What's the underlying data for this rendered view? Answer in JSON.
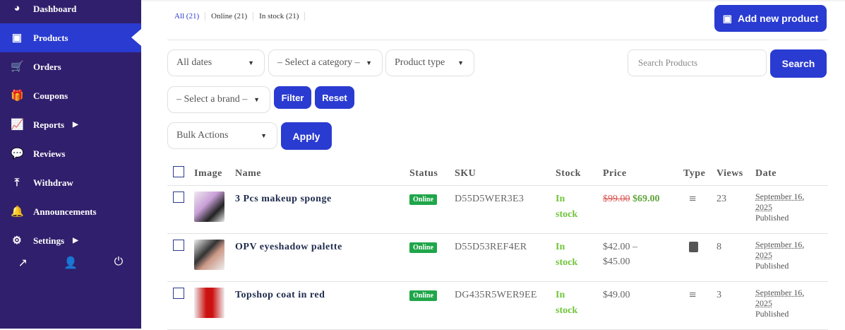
{
  "sidebar": {
    "items": [
      {
        "label": "Dashboard",
        "icon": "dashboard-icon",
        "glyph": "◕"
      },
      {
        "label": "Products",
        "icon": "briefcase-icon",
        "glyph": "▣",
        "active": true
      },
      {
        "label": "Orders",
        "icon": "cart-icon",
        "glyph": "🛒"
      },
      {
        "label": "Coupons",
        "icon": "gift-icon",
        "glyph": "🎁"
      },
      {
        "label": "Reports",
        "icon": "chart-line-icon",
        "glyph": "📈",
        "submenu": true
      },
      {
        "label": "Reviews",
        "icon": "comments-icon",
        "glyph": "💬"
      },
      {
        "label": "Withdraw",
        "icon": "upload-icon",
        "glyph": "⤒"
      },
      {
        "label": "Announcements",
        "icon": "bell-icon",
        "glyph": "🔔"
      },
      {
        "label": "Settings",
        "icon": "gear-icon",
        "glyph": "⚙",
        "submenu": true
      }
    ],
    "footer": [
      {
        "icon": "external-link-icon",
        "glyph": "↗"
      },
      {
        "icon": "user-icon",
        "glyph": "👤"
      },
      {
        "icon": "power-icon",
        "glyph": "⏻"
      }
    ]
  },
  "tabs": [
    "All (21)",
    "Online (21)",
    "In stock (21)"
  ],
  "add_button": "Add new product",
  "filters": {
    "dates": "All dates",
    "category": "– Select a category –",
    "type": "Product type",
    "brand": "– Select a brand –",
    "filter": "Filter",
    "reset": "Reset",
    "search_placeholder": "Search Products",
    "search": "Search",
    "bulk": "Bulk Actions",
    "apply": "Apply"
  },
  "columns": [
    "Image",
    "Name",
    "Status",
    "SKU",
    "Stock",
    "Price",
    "Type",
    "Views",
    "Date"
  ],
  "rows": [
    {
      "name": "3 Pcs makeup sponge",
      "status": "Online",
      "sku": "D55D5WER3E3",
      "stock1": "In",
      "stock2": "stock",
      "old_price": "$99.00",
      "price": "$69.00",
      "type": "simple",
      "views": "23",
      "date1": "September 16,",
      "date2": "2025",
      "state": "Published"
    },
    {
      "name": "OPV eyeshadow palette",
      "status": "Online",
      "sku": "D55D53REF4ER",
      "stock1": "In",
      "stock2": "stock",
      "price": "$42.00 –",
      "price2": "$45.00",
      "type": "variable",
      "views": "8",
      "date1": "September 16,",
      "date2": "2025",
      "state": "Published"
    },
    {
      "name": "Topshop coat in red",
      "status": "Online",
      "sku": "DG435R5WER9EE",
      "stock1": "In",
      "stock2": "stock",
      "price": "$49.00",
      "type": "simple",
      "views": "3",
      "date1": "September 16,",
      "date2": "2025",
      "state": "Published"
    }
  ],
  "colors": {
    "sidebar": "#301f6c",
    "accent": "#2a3bd1",
    "online": "#1fa64a",
    "in_stock": "#72c43d"
  }
}
